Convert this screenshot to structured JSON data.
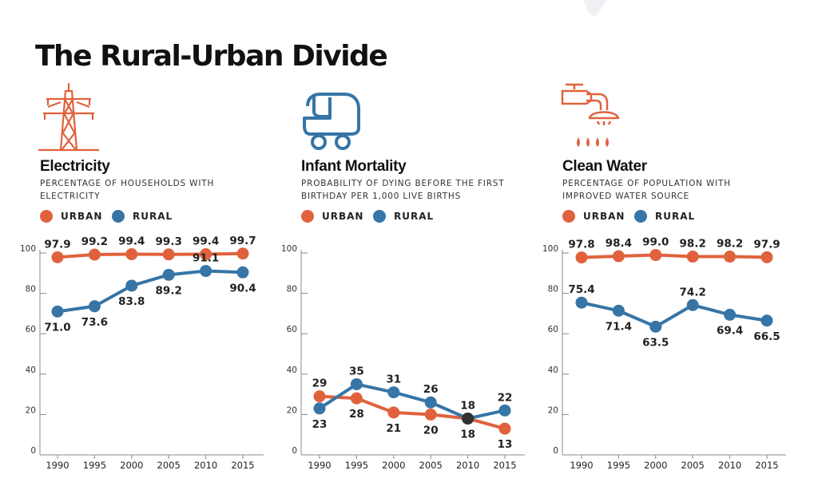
{
  "title": "The Rural-Urban Divide",
  "colors": {
    "urban": "#E0623D",
    "rural": "#3675A6",
    "overlap": "#333333",
    "axis": "#888888"
  },
  "legend": {
    "urban": "URBAN",
    "rural": "RURAL"
  },
  "panels": [
    {
      "title": "Electricity",
      "subtitle": "PERCENTAGE OF HOUSEHOLDS WITH ELECTRICITY",
      "icon": "power-tower-icon"
    },
    {
      "title": "Infant Mortality",
      "subtitle": "PROBABILITY OF DYING BEFORE THE FIRST BIRTHDAY PER 1,000 LIVE BIRTHS",
      "icon": "baby-stroller-icon"
    },
    {
      "title": "Clean Water",
      "subtitle": "PERCENTAGE OF POPULATION WITH IMPROVED WATER SOURCE",
      "icon": "water-tap-icon"
    }
  ],
  "chart_data": [
    {
      "type": "line",
      "title": "Electricity",
      "x": [
        "1990",
        "1995",
        "2000",
        "2005",
        "2010",
        "2015"
      ],
      "yticks": [
        "0",
        "20",
        "40",
        "60",
        "80",
        "100"
      ],
      "ylim": [
        0,
        100
      ],
      "series": [
        {
          "name": "URBAN",
          "values": [
            97.9,
            99.2,
            99.4,
            99.3,
            99.4,
            99.7
          ],
          "labels": [
            "97.9",
            "99.2",
            "99.4",
            "99.3",
            "99.4",
            "99.7"
          ]
        },
        {
          "name": "RURAL",
          "values": [
            71.0,
            73.6,
            83.8,
            89.2,
            91.1,
            90.4
          ],
          "labels": [
            "71.0",
            "73.6",
            "83.8",
            "89.2",
            "91.1",
            "90.4"
          ]
        }
      ]
    },
    {
      "type": "line",
      "title": "Infant Mortality",
      "x": [
        "1990",
        "1995",
        "2000",
        "2005",
        "2010",
        "2015"
      ],
      "yticks": [
        "0",
        "20",
        "40",
        "60",
        "80",
        "100"
      ],
      "ylim": [
        0,
        100
      ],
      "series": [
        {
          "name": "URBAN",
          "values": [
            29,
            28,
            21,
            20,
            18,
            13
          ],
          "labels": [
            "29",
            "28",
            "21",
            "20",
            "18",
            "13"
          ]
        },
        {
          "name": "RURAL",
          "values": [
            23,
            35,
            31,
            26,
            18,
            22
          ],
          "labels": [
            "23",
            "35",
            "31",
            "26",
            "18",
            "22"
          ]
        }
      ]
    },
    {
      "type": "line",
      "title": "Clean Water",
      "x": [
        "1990",
        "1995",
        "2000",
        "2005",
        "2010",
        "2015"
      ],
      "yticks": [
        "0",
        "20",
        "40",
        "60",
        "80",
        "100"
      ],
      "ylim": [
        0,
        100
      ],
      "series": [
        {
          "name": "URBAN",
          "values": [
            97.8,
            98.4,
            99.0,
            98.2,
            98.2,
            97.9
          ],
          "labels": [
            "97.8",
            "98.4",
            "99.0",
            "98.2",
            "98.2",
            "97.9"
          ]
        },
        {
          "name": "RURAL",
          "values": [
            75.4,
            71.4,
            63.5,
            74.2,
            69.4,
            66.5
          ],
          "labels": [
            "75.4",
            "71.4",
            "63.5",
            "74.2",
            "69.4",
            "66.5"
          ]
        }
      ]
    }
  ]
}
